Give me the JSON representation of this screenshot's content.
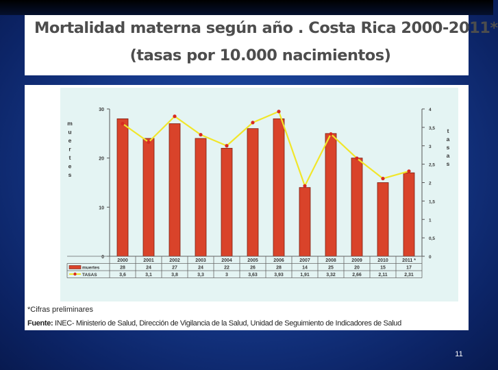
{
  "slide": {
    "title_line1": "Mortalidad materna  según año . Costa Rica 2000-2011*",
    "title_line2": "(tasas por 10.000 nacimientos)",
    "footnote": "*Cifras preliminares",
    "source_label": "Fuente:",
    "source_text": " INEC- Ministerio de Salud, Dirección de Vigilancia de la Salud, Unidad de Seguimiento de Indicadores de Salud",
    "page_number": "11"
  },
  "colors": {
    "bar": "#d9432a",
    "bar_edge": "#7a1d10",
    "line": "#f1e62a",
    "marker": "#d82a20",
    "panel": "#e4f4f3",
    "axis_text": "#3a3a3a"
  },
  "chart_data": {
    "type": "bar",
    "categories": [
      "2000",
      "2001",
      "2002",
      "2003",
      "2004",
      "2005",
      "2006",
      "2007",
      "2008",
      "2009",
      "2010",
      "2011 *"
    ],
    "left_axis_label": "muertes",
    "right_axis_label": "tasas",
    "left_ylim": [
      0,
      30
    ],
    "right_ylim": [
      0,
      4
    ],
    "left_ticks": [
      "0",
      "10",
      "20",
      "30"
    ],
    "right_ticks": [
      "0",
      "0,5",
      "1",
      "1,5",
      "2",
      "2,5",
      "3",
      "3,5",
      "4"
    ],
    "grid": false,
    "series": [
      {
        "name": "muertes",
        "kind": "bar",
        "axis": "left",
        "values": [
          28,
          24,
          27,
          24,
          22,
          26,
          28,
          14,
          25,
          20,
          15,
          17
        ],
        "labels": [
          "28",
          "24",
          "27",
          "24",
          "22",
          "26",
          "28",
          "14",
          "25",
          "20",
          "15",
          "17"
        ]
      },
      {
        "name": "TASAS",
        "kind": "line",
        "axis": "right",
        "values": [
          3.6,
          3.1,
          3.8,
          3.3,
          3,
          3.63,
          3.93,
          1.91,
          3.32,
          2.66,
          2.11,
          2.31
        ],
        "labels": [
          "3,6",
          "3,1",
          "3,8",
          "3,3",
          "3",
          "3,63",
          "3,93",
          "1,91",
          "3,32",
          "2,66",
          "2,11",
          "2,31"
        ]
      }
    ]
  }
}
